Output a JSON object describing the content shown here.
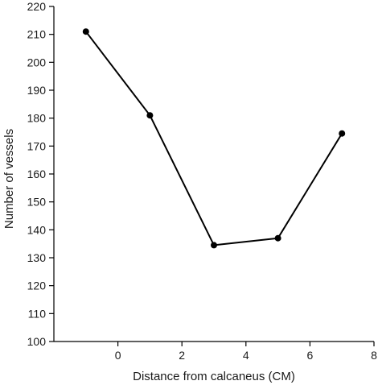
{
  "chart_data": {
    "type": "line",
    "title": "",
    "xlabel": "Distance from calcaneus (CM)",
    "ylabel": "Number of vessels",
    "xlim": [
      -2,
      8
    ],
    "ylim": [
      100,
      220
    ],
    "xticks": [
      0,
      2,
      4,
      6,
      8
    ],
    "yticks": [
      100,
      110,
      120,
      130,
      140,
      150,
      160,
      170,
      180,
      190,
      200,
      210,
      220
    ],
    "grid": false,
    "legend": "none",
    "series": [
      {
        "x": [
          -1,
          1,
          3,
          5,
          7
        ],
        "y": [
          211,
          181,
          134.5,
          137,
          174.5
        ],
        "color": "#000000",
        "marker": "circle"
      }
    ]
  }
}
